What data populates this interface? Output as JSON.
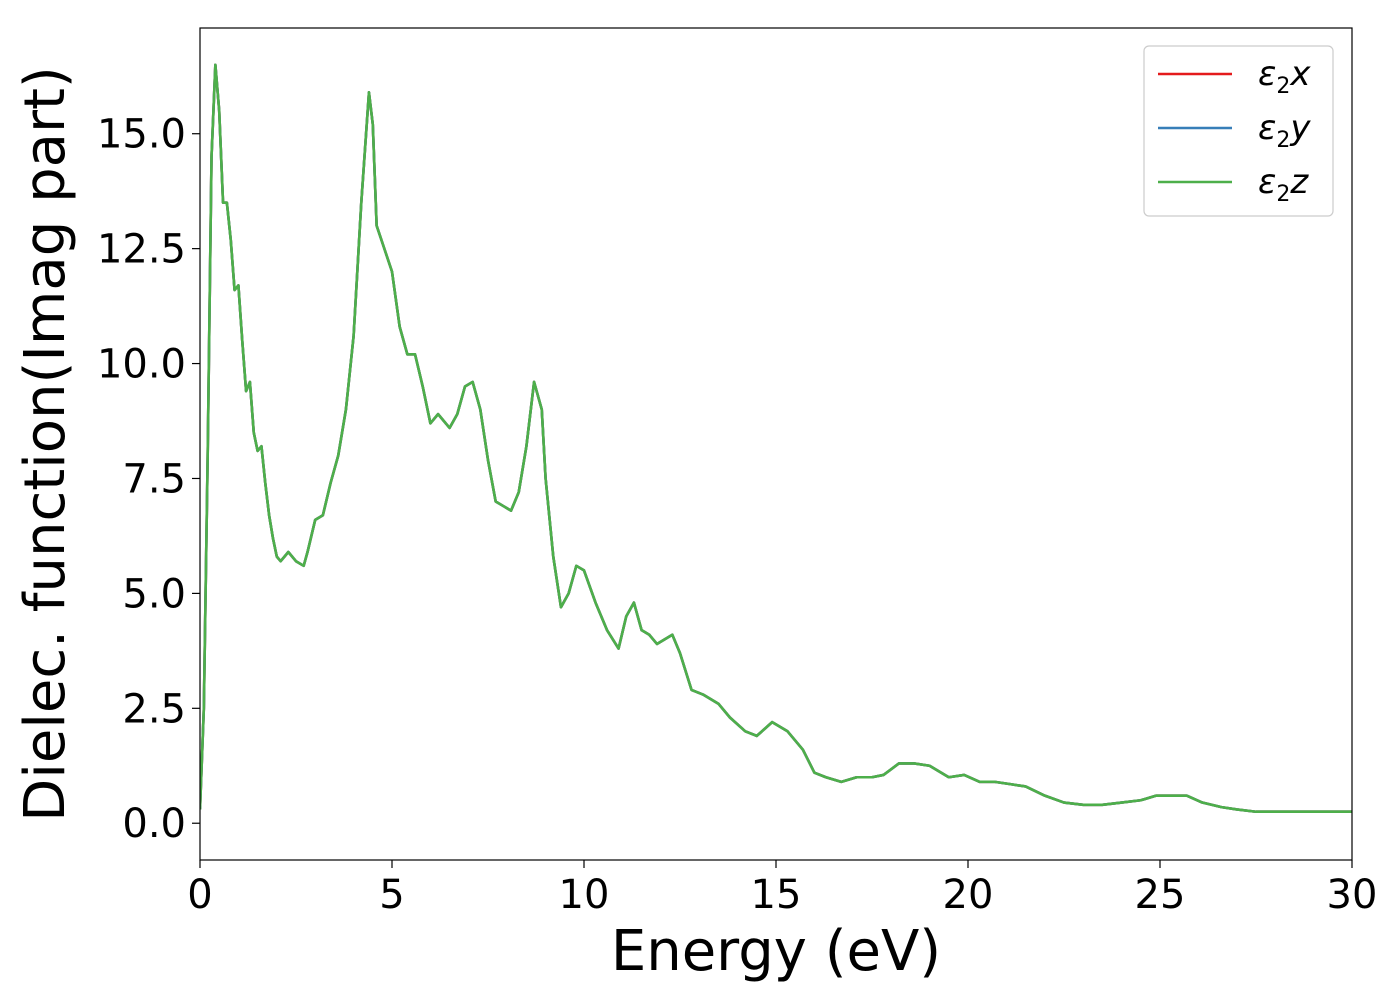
{
  "chart_data": {
    "type": "line",
    "xlabel": "Energy (eV)",
    "ylabel": "Dielec. function(Imag part)",
    "xlim": [
      0,
      30
    ],
    "ylim": [
      -0.8,
      17.3
    ],
    "xticks": [
      0,
      5,
      10,
      15,
      20,
      25,
      30
    ],
    "xtick_labels": [
      "0",
      "5",
      "10",
      "15",
      "20",
      "25",
      "30"
    ],
    "yticks": [
      0.0,
      2.5,
      5.0,
      7.5,
      10.0,
      12.5,
      15.0
    ],
    "ytick_labels": [
      "0.0",
      "2.5",
      "5.0",
      "7.5",
      "10.0",
      "12.5",
      "15.0"
    ],
    "grid": false,
    "legend_position": "top-right",
    "series": [
      {
        "name": "ε2x",
        "legend_main": "ε",
        "legend_sub": "2",
        "legend_var": "x",
        "color": "#e41a1c",
        "x": [
          0.0,
          0.1,
          0.2,
          0.3,
          0.4,
          0.5,
          0.6,
          0.7,
          0.8,
          0.9,
          1.0,
          1.1,
          1.2,
          1.3,
          1.4,
          1.5,
          1.6,
          1.7,
          1.8,
          1.9,
          2.0,
          2.1,
          2.2,
          2.3,
          2.5,
          2.7,
          2.8,
          3.0,
          3.2,
          3.4,
          3.6,
          3.8,
          4.0,
          4.2,
          4.4,
          4.5,
          4.6,
          4.8,
          5.0,
          5.2,
          5.4,
          5.6,
          5.8,
          6.0,
          6.2,
          6.5,
          6.7,
          6.9,
          7.1,
          7.3,
          7.5,
          7.7,
          7.9,
          8.1,
          8.3,
          8.5,
          8.7,
          8.9,
          9.0,
          9.2,
          9.4,
          9.6,
          9.8,
          10.0,
          10.3,
          10.6,
          10.9,
          11.1,
          11.3,
          11.5,
          11.7,
          11.9,
          12.1,
          12.3,
          12.5,
          12.8,
          13.1,
          13.5,
          13.8,
          14.2,
          14.5,
          14.9,
          15.3,
          15.7,
          16.0,
          16.3,
          16.7,
          17.1,
          17.5,
          17.8,
          18.2,
          18.6,
          19.0,
          19.5,
          19.9,
          20.3,
          20.7,
          21.1,
          21.5,
          22.0,
          22.5,
          23.0,
          23.5,
          24.0,
          24.5,
          24.9,
          25.2,
          25.7,
          26.1,
          26.6,
          27.0,
          27.5,
          28.0,
          28.5,
          29.0,
          29.5,
          30.0
        ],
        "values": [
          0.3,
          2.5,
          8.0,
          14.5,
          16.5,
          15.5,
          13.5,
          13.5,
          12.7,
          11.6,
          11.7,
          10.5,
          9.4,
          9.6,
          8.5,
          8.1,
          8.2,
          7.4,
          6.7,
          6.2,
          5.8,
          5.7,
          5.8,
          5.9,
          5.7,
          5.6,
          5.9,
          6.6,
          6.7,
          7.4,
          8.0,
          9.0,
          10.6,
          13.5,
          15.9,
          15.2,
          13.0,
          12.5,
          12.0,
          10.8,
          10.2,
          10.2,
          9.5,
          8.7,
          8.9,
          8.6,
          8.9,
          9.5,
          9.6,
          9.0,
          7.9,
          7.0,
          6.9,
          6.8,
          7.2,
          8.2,
          9.6,
          9.0,
          7.5,
          5.8,
          4.7,
          5.0,
          5.6,
          5.5,
          4.8,
          4.2,
          3.8,
          4.5,
          4.8,
          4.2,
          4.1,
          3.9,
          4.0,
          4.1,
          3.7,
          2.9,
          2.8,
          2.6,
          2.3,
          2.0,
          1.9,
          2.2,
          2.0,
          1.6,
          1.1,
          1.0,
          0.9,
          1.0,
          1.0,
          1.05,
          1.3,
          1.3,
          1.25,
          1.0,
          1.05,
          0.9,
          0.9,
          0.85,
          0.8,
          0.6,
          0.45,
          0.4,
          0.4,
          0.45,
          0.5,
          0.6,
          0.6,
          0.6,
          0.45,
          0.35,
          0.3,
          0.25,
          0.25,
          0.25,
          0.25,
          0.25,
          0.25
        ]
      },
      {
        "name": "ε2y",
        "legend_main": "ε",
        "legend_sub": "2",
        "legend_var": "y",
        "color": "#377eb8",
        "same_as": "ε2x"
      },
      {
        "name": "ε2z",
        "legend_main": "ε",
        "legend_sub": "2",
        "legend_var": "z",
        "color": "#4daf4a",
        "same_as": "ε2x"
      }
    ]
  }
}
